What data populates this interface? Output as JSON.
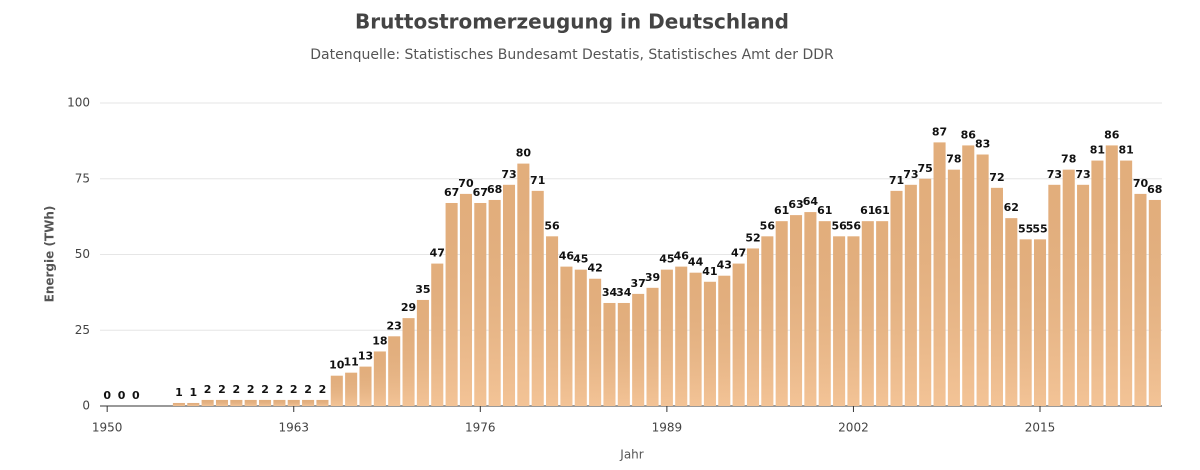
{
  "chart_data": {
    "type": "bar",
    "title": "Bruttostromerzeugung in Deutschland",
    "subtitle": "Datenquelle: Statistisches Bundesamt Destatis, Statistisches Amt der DDR",
    "x_label": "Jahr",
    "y_label": "Energie (TWh)",
    "color": "#f1b984",
    "grid": true,
    "categories": [
      1950,
      1951,
      1952,
      1953,
      1954,
      1955,
      1956,
      1957,
      1958,
      1959,
      1960,
      1961,
      1962,
      1963,
      1964,
      1965,
      1966,
      1967,
      1968,
      1969,
      1970,
      1971,
      1972,
      1973,
      1974,
      1975,
      1976,
      1977,
      1978,
      1979,
      1980,
      1981,
      1982,
      1983,
      1984,
      1985,
      1986,
      1987,
      1988,
      1989,
      1990,
      1991,
      1992,
      1993,
      1994,
      1995,
      1996,
      1997,
      1998,
      1999,
      2000,
      2001,
      2002,
      2003,
      2004,
      2005,
      2006,
      2007,
      2008,
      2009,
      2010,
      2011,
      2012,
      2013,
      2014,
      2015,
      2016,
      2017,
      2018,
      2019,
      2020,
      2021,
      2022,
      2023
    ],
    "values": [
      0,
      0,
      0,
      null,
      null,
      1,
      1,
      2,
      2,
      2,
      2,
      2,
      2,
      2,
      2,
      2,
      10,
      11,
      13,
      18,
      23,
      29,
      35,
      47,
      67,
      70,
      67,
      68,
      73,
      80,
      71,
      56,
      46,
      45,
      42,
      34,
      34,
      37,
      39,
      45,
      46,
      44,
      41,
      43,
      47,
      52,
      56,
      61,
      63,
      64,
      61,
      56,
      56,
      61,
      61,
      71,
      73,
      75,
      87,
      78,
      86,
      83,
      72,
      62,
      55,
      55,
      73,
      78,
      73,
      81,
      86,
      81,
      70,
      68
    ],
    "xticks": [
      1950,
      1963,
      1976,
      1989,
      2002,
      2015
    ],
    "ylim": [
      0,
      100
    ],
    "yticks": [
      0,
      25,
      50,
      75,
      100
    ]
  }
}
